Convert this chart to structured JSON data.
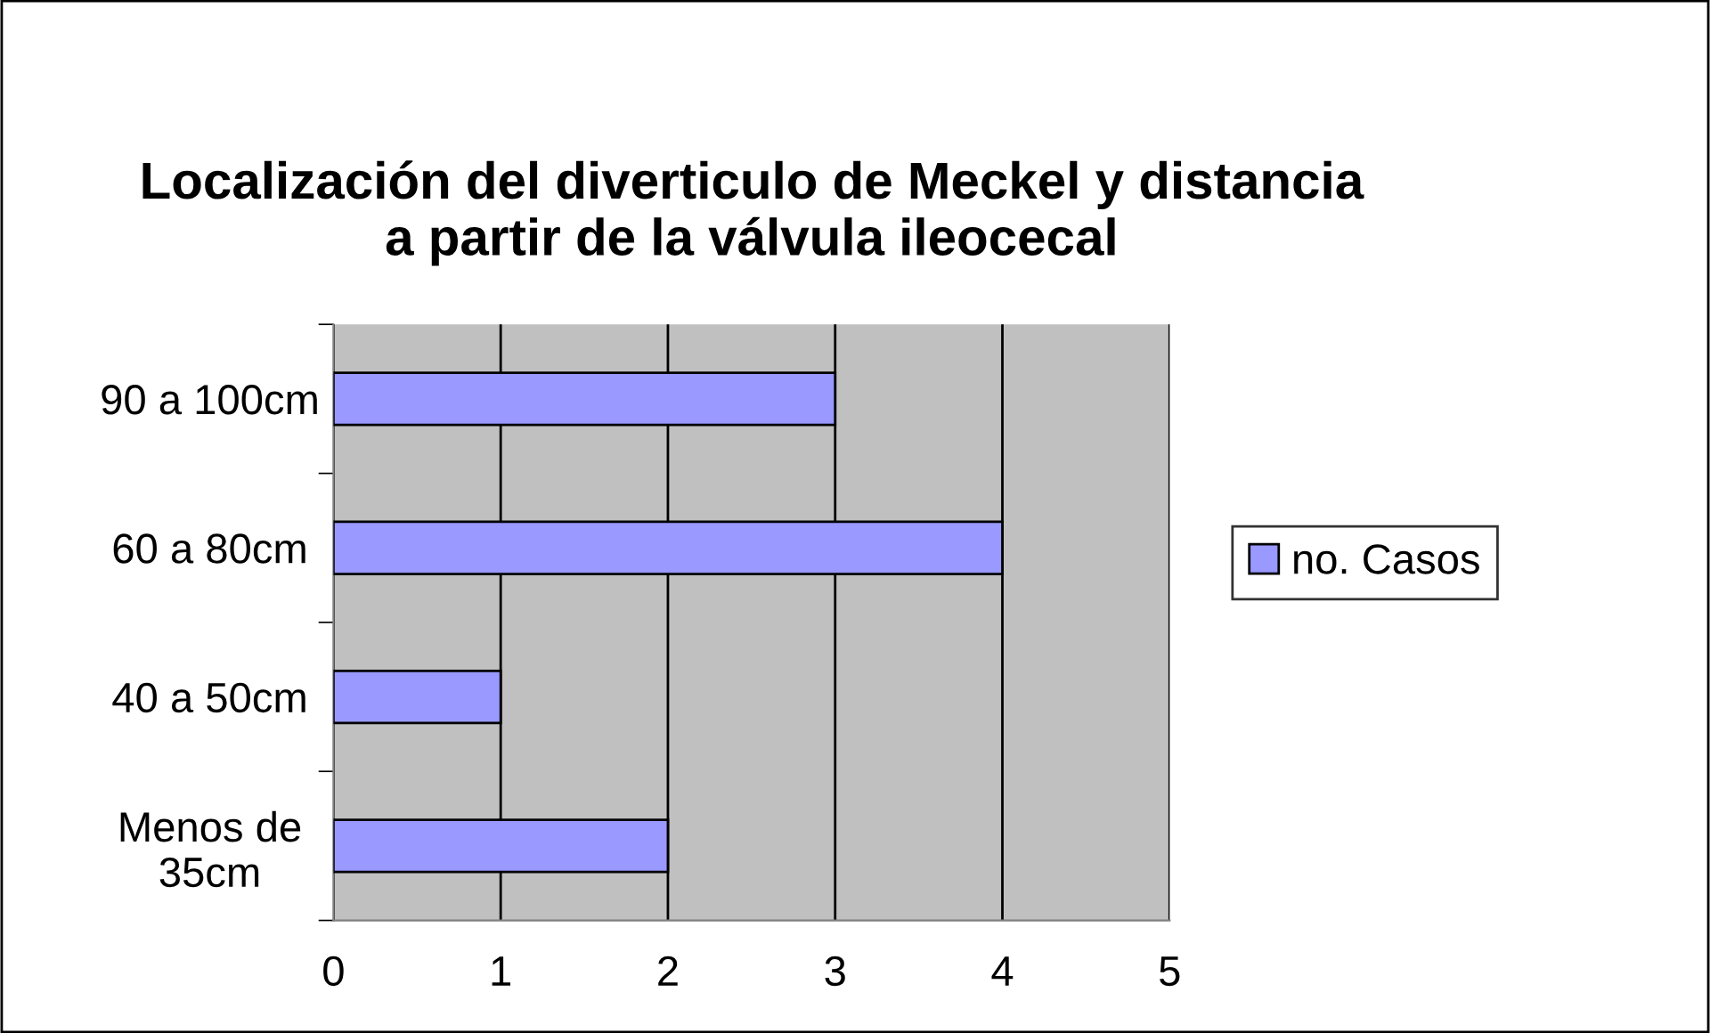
{
  "chart_data": {
    "type": "bar",
    "orientation": "horizontal",
    "title": "Localización del diverticulo de Meckel y distancia\na partir de la válvula ileocecal",
    "categories": [
      "90 a 100cm",
      "60 a 80cm",
      "40 a 50cm",
      "Menos de\n35cm"
    ],
    "series": [
      {
        "name": "no. Casos",
        "color": "#9999ff",
        "values": [
          3,
          4,
          1,
          2
        ]
      }
    ],
    "xlim": [
      0,
      5
    ],
    "xticks": [
      0,
      1,
      2,
      3,
      4,
      5
    ],
    "grid": "x",
    "legend": "right"
  }
}
